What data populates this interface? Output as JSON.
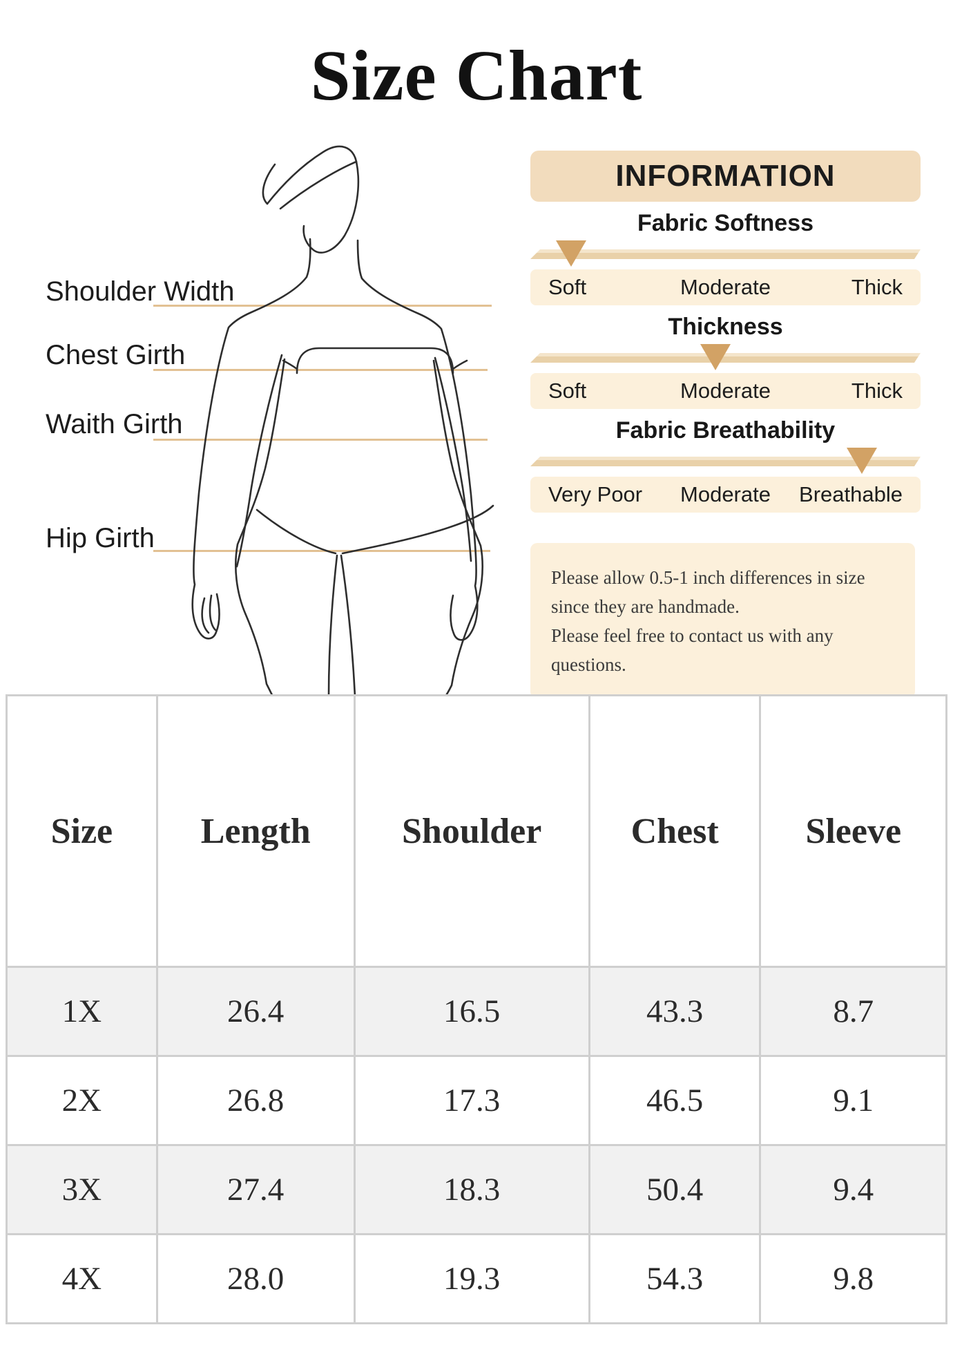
{
  "page": {
    "title": "Size Chart"
  },
  "figure": {
    "labels": [
      "Shoulder Width",
      "Chest Girth",
      "Waith Girth",
      "Hip Girth"
    ]
  },
  "information": {
    "header": "INFORMATION",
    "scales": [
      {
        "title": "Fabric Softness",
        "labels": [
          "Soft",
          "Moderate",
          "Thick"
        ],
        "marker_pct": 10.5,
        "selected": "Soft"
      },
      {
        "title": "Thickness",
        "labels": [
          "Soft",
          "Moderate",
          "Thick"
        ],
        "marker_pct": 47.5,
        "selected": "Moderate"
      },
      {
        "title": "Fabric Breathability",
        "labels": [
          "Very Poor",
          "Moderate",
          "Breathable"
        ],
        "marker_pct": 85.0,
        "selected": "Breathable"
      }
    ],
    "note_lines": [
      "Please allow 0.5-1 inch differences in size",
      "since they are handmade.",
      "Please feel free to contact us with any questions."
    ]
  },
  "size_table": {
    "columns": [
      "Size",
      "Length",
      "Shoulder",
      "Chest",
      "Sleeve"
    ],
    "rows": [
      [
        "1X",
        "26.4",
        "16.5",
        "43.3",
        "8.7"
      ],
      [
        "2X",
        "26.8",
        "17.3",
        "46.5",
        "9.1"
      ],
      [
        "3X",
        "27.4",
        "18.3",
        "50.4",
        "9.4"
      ],
      [
        "4X",
        "28.0",
        "19.3",
        "54.3",
        "9.8"
      ]
    ]
  },
  "colors": {
    "info_header_bg": "#f2dcbd",
    "scale_bar": "#e9d1a9",
    "marker": "#d2a265",
    "cream_row": "#fcf0db",
    "measure_line": "#e2c193",
    "table_border": "#cfcfcf",
    "alt_row_bg": "#f1f1f1",
    "text": "#1e1e1e"
  }
}
